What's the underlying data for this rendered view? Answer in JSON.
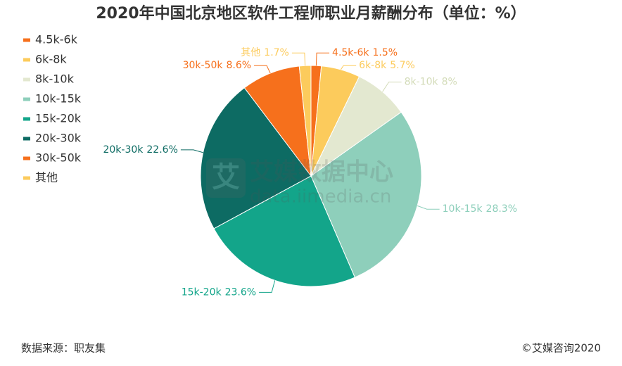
{
  "chart_data": {
    "type": "pie",
    "title": "2020年中国北京地区软件工程师职业月薪酬分布（单位：%）",
    "categories": [
      "4.5k-6k",
      "6k-8k",
      "8k-10k",
      "10k-15k",
      "15k-20k",
      "20k-30k",
      "30k-50k",
      "其他"
    ],
    "values": [
      1.5,
      5.7,
      8,
      28.3,
      23.6,
      22.6,
      8.6,
      1.7
    ],
    "value_labels": [
      "1.5%",
      "5.7%",
      "8%",
      "28.3%",
      "23.6%",
      "22.6%",
      "8.6%",
      "1.7%"
    ],
    "colors": [
      "#f6701c",
      "#fccb5c",
      "#e3e8d0",
      "#8ecfbb",
      "#13a58a",
      "#0d6b63",
      "#f6701c",
      "#fccb5c"
    ],
    "legend": "top-left",
    "watermark": {
      "logo": "艾",
      "name": "艾媒数据中心",
      "url": "data.iimedia.cn"
    },
    "source": "数据来源：职友集",
    "copyright": "©艾媒咨询2020"
  }
}
